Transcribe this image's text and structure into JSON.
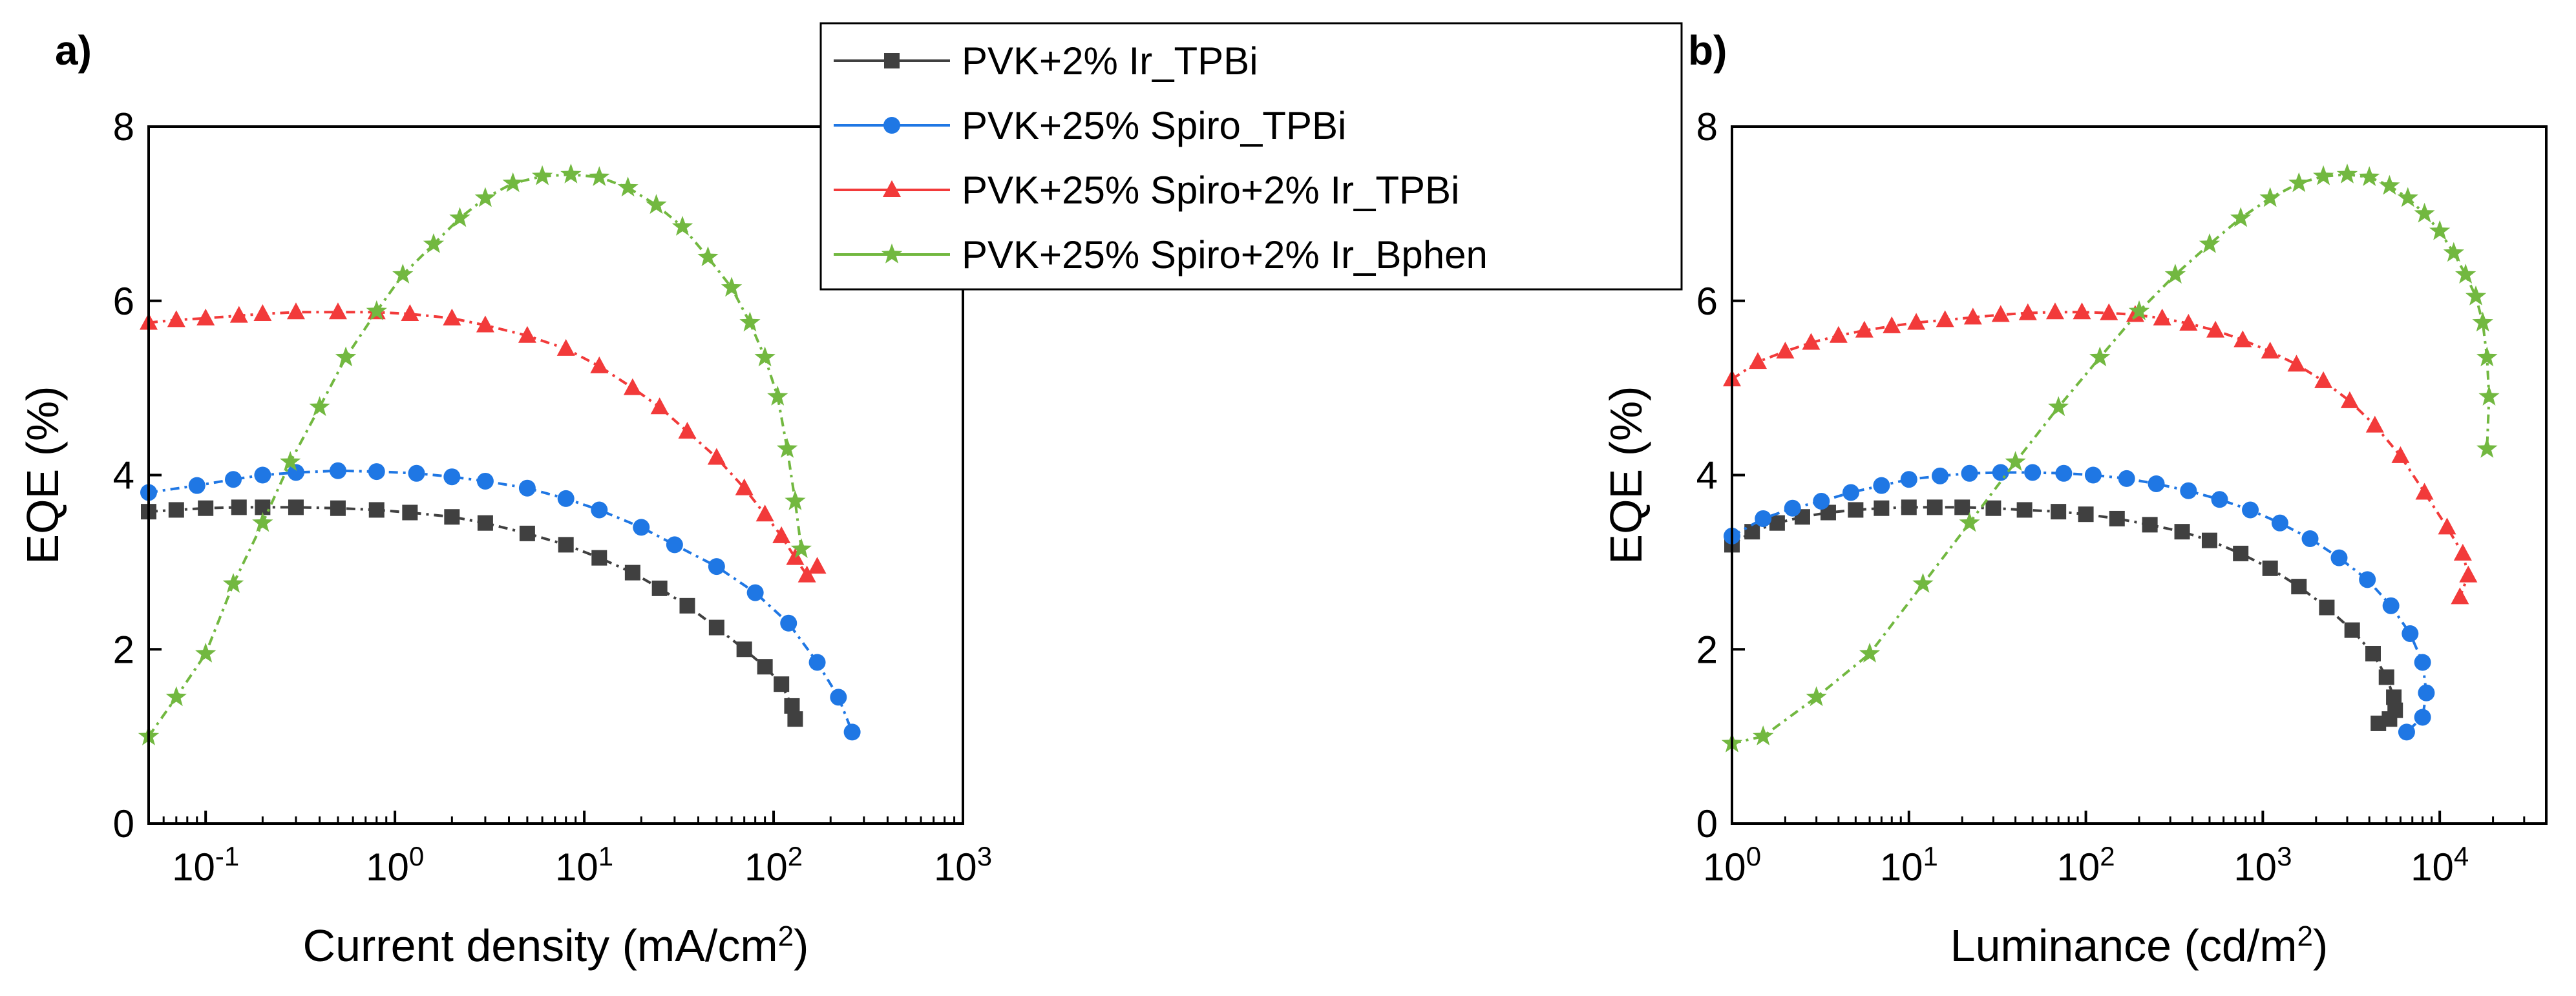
{
  "figure": {
    "colors": {
      "PVK+2% Ir_TPBi": "#404040",
      "PVK+25% Spiro_TPBi": "#1f77e4",
      "PVK+25% Spiro+2% Ir_TPBi": "#f23a3a",
      "PVK+25% Spiro+2% Ir_Bphen": "#72b840"
    },
    "legend": {
      "entries": [
        {
          "label": "PVK+2% Ir_TPBi",
          "marker": "square"
        },
        {
          "label": "PVK+25% Spiro_TPBi",
          "marker": "circle"
        },
        {
          "label": "PVK+25% Spiro+2% Ir_TPBi",
          "marker": "triangle"
        },
        {
          "label": "PVK+25% Spiro+2% Ir_Bphen",
          "marker": "star"
        }
      ]
    }
  },
  "chart_data": [
    {
      "panel": "a)",
      "type": "line",
      "xscale": "log",
      "xlabel_main": "Current density (mA/cm",
      "xlabel_sup": "2",
      "xlabel_end": ")",
      "ylabel": "EQE  (%)",
      "xlim": [
        0.05,
        1000
      ],
      "ylim": [
        0,
        8
      ],
      "xticks": [
        {
          "v": 0.1,
          "base": "10",
          "exp": "-1"
        },
        {
          "v": 1,
          "base": "10",
          "exp": "0"
        },
        {
          "v": 10,
          "base": "10",
          "exp": "1"
        },
        {
          "v": 100,
          "base": "10",
          "exp": "2"
        },
        {
          "v": 1000,
          "base": "10",
          "exp": "3"
        }
      ],
      "yticks": [
        {
          "v": 0,
          "label": "0"
        },
        {
          "v": 2,
          "label": "2"
        },
        {
          "v": 4,
          "label": "4"
        },
        {
          "v": 6,
          "label": "6"
        },
        {
          "v": 8,
          "label": "8"
        }
      ],
      "series": [
        {
          "name": "PVK+2% Ir_TPBi",
          "marker": "square",
          "x": [
            0.05,
            0.07,
            0.1,
            0.15,
            0.2,
            0.3,
            0.5,
            0.8,
            1.2,
            2,
            3,
            5,
            8,
            12,
            18,
            25,
            35,
            50,
            70,
            90,
            110,
            125,
            130
          ],
          "y": [
            3.58,
            3.6,
            3.62,
            3.63,
            3.63,
            3.63,
            3.62,
            3.6,
            3.57,
            3.52,
            3.45,
            3.33,
            3.2,
            3.05,
            2.88,
            2.7,
            2.5,
            2.25,
            2.0,
            1.8,
            1.6,
            1.35,
            1.2
          ]
        },
        {
          "name": "PVK+25% Spiro_TPBi",
          "marker": "circle",
          "x": [
            0.05,
            0.09,
            0.14,
            0.2,
            0.3,
            0.5,
            0.8,
            1.3,
            2,
            3,
            5,
            8,
            12,
            20,
            30,
            50,
            80,
            120,
            170,
            220,
            260
          ],
          "y": [
            3.8,
            3.88,
            3.95,
            4.0,
            4.03,
            4.05,
            4.04,
            4.02,
            3.98,
            3.93,
            3.85,
            3.73,
            3.6,
            3.4,
            3.2,
            2.95,
            2.65,
            2.3,
            1.85,
            1.45,
            1.05
          ]
        },
        {
          "name": "PVK+25% Spiro+2% Ir_TPBi",
          "marker": "triangle",
          "x": [
            0.05,
            0.07,
            0.1,
            0.15,
            0.2,
            0.3,
            0.5,
            0.8,
            1.2,
            2,
            3,
            5,
            8,
            12,
            18,
            25,
            35,
            50,
            70,
            90,
            110,
            130,
            150,
            170
          ],
          "y": [
            5.75,
            5.78,
            5.8,
            5.83,
            5.85,
            5.87,
            5.87,
            5.87,
            5.85,
            5.8,
            5.72,
            5.6,
            5.45,
            5.25,
            5.0,
            4.78,
            4.5,
            4.2,
            3.85,
            3.55,
            3.3,
            3.05,
            2.85,
            2.95
          ]
        },
        {
          "name": "PVK+25% Spiro+2% Ir_Bphen",
          "marker": "star",
          "x": [
            0.05,
            0.07,
            0.1,
            0.14,
            0.2,
            0.28,
            0.4,
            0.55,
            0.8,
            1.1,
            1.6,
            2.2,
            3,
            4.2,
            6,
            8.5,
            12,
            17,
            24,
            33,
            45,
            60,
            75,
            90,
            105,
            118,
            130,
            140
          ],
          "y": [
            1.0,
            1.45,
            1.95,
            2.75,
            3.45,
            4.15,
            4.78,
            5.35,
            5.88,
            6.3,
            6.65,
            6.95,
            7.18,
            7.35,
            7.43,
            7.45,
            7.42,
            7.3,
            7.1,
            6.85,
            6.5,
            6.15,
            5.75,
            5.35,
            4.9,
            4.3,
            3.7,
            3.15
          ]
        }
      ]
    },
    {
      "panel": "b)",
      "type": "line",
      "xscale": "log",
      "xlabel_main": "Luminance (cd/m",
      "xlabel_sup": "2",
      "xlabel_end": ")",
      "ylabel": "EQE  (%)",
      "xlim": [
        1,
        40000
      ],
      "ylim": [
        0,
        8
      ],
      "xticks": [
        {
          "v": 1,
          "base": "10",
          "exp": "0"
        },
        {
          "v": 10,
          "base": "10",
          "exp": "1"
        },
        {
          "v": 100,
          "base": "10",
          "exp": "2"
        },
        {
          "v": 1000,
          "base": "10",
          "exp": "3"
        },
        {
          "v": 10000,
          "base": "10",
          "exp": "4"
        }
      ],
      "yticks": [
        {
          "v": 0,
          "label": "0"
        },
        {
          "v": 2,
          "label": "2"
        },
        {
          "v": 4,
          "label": "4"
        },
        {
          "v": 6,
          "label": "6"
        },
        {
          "v": 8,
          "label": "8"
        }
      ],
      "series": [
        {
          "name": "PVK+2% Ir_TPBi",
          "marker": "square",
          "x": [
            1,
            1.3,
            1.8,
            2.5,
            3.5,
            5,
            7,
            10,
            14,
            20,
            30,
            45,
            70,
            100,
            150,
            230,
            350,
            500,
            750,
            1100,
            1600,
            2300,
            3200,
            4200,
            5000,
            5500,
            5600,
            5200,
            4500
          ],
          "y": [
            3.2,
            3.35,
            3.45,
            3.52,
            3.57,
            3.6,
            3.62,
            3.63,
            3.63,
            3.63,
            3.62,
            3.6,
            3.58,
            3.55,
            3.5,
            3.43,
            3.35,
            3.25,
            3.1,
            2.93,
            2.72,
            2.48,
            2.22,
            1.95,
            1.68,
            1.45,
            1.3,
            1.2,
            1.15
          ]
        },
        {
          "name": "PVK+25% Spiro_TPBi",
          "marker": "circle",
          "x": [
            1,
            1.5,
            2.2,
            3.2,
            4.7,
            7,
            10,
            15,
            22,
            33,
            50,
            75,
            110,
            170,
            250,
            380,
            570,
            850,
            1250,
            1850,
            2700,
            3900,
            5300,
            6800,
            8000,
            8400,
            8000,
            6500
          ],
          "y": [
            3.3,
            3.5,
            3.62,
            3.7,
            3.8,
            3.88,
            3.95,
            3.99,
            4.02,
            4.03,
            4.03,
            4.02,
            4.0,
            3.96,
            3.9,
            3.82,
            3.72,
            3.6,
            3.45,
            3.27,
            3.05,
            2.8,
            2.5,
            2.18,
            1.85,
            1.5,
            1.22,
            1.05
          ]
        },
        {
          "name": "PVK+25% Spiro+2% Ir_TPBi",
          "marker": "triangle",
          "x": [
            1,
            1.4,
            2,
            2.8,
            4,
            5.6,
            8,
            11,
            16,
            23,
            33,
            47,
            67,
            95,
            135,
            190,
            270,
            380,
            540,
            770,
            1100,
            1550,
            2200,
            3100,
            4300,
            6000,
            8200,
            11000,
            13500,
            14500,
            13000
          ],
          "y": [
            5.1,
            5.3,
            5.42,
            5.52,
            5.6,
            5.66,
            5.71,
            5.75,
            5.78,
            5.81,
            5.84,
            5.86,
            5.87,
            5.87,
            5.86,
            5.84,
            5.8,
            5.74,
            5.66,
            5.55,
            5.42,
            5.27,
            5.08,
            4.85,
            4.57,
            4.22,
            3.8,
            3.4,
            3.1,
            2.85,
            2.6
          ]
        },
        {
          "name": "PVK+25% Spiro+2% Ir_Bphen",
          "marker": "star",
          "x": [
            1,
            1.5,
            3,
            6,
            12,
            22,
            40,
            70,
            120,
            200,
            320,
            500,
            750,
            1100,
            1600,
            2200,
            3000,
            4000,
            5200,
            6600,
            8200,
            10000,
            12000,
            14000,
            16000,
            17500,
            18500,
            19000,
            18500
          ],
          "y": [
            0.92,
            1.0,
            1.45,
            1.95,
            2.75,
            3.45,
            4.15,
            4.78,
            5.35,
            5.88,
            6.3,
            6.65,
            6.95,
            7.18,
            7.35,
            7.43,
            7.45,
            7.42,
            7.32,
            7.18,
            7.0,
            6.8,
            6.55,
            6.3,
            6.05,
            5.75,
            5.35,
            4.9,
            4.3
          ]
        }
      ]
    }
  ]
}
